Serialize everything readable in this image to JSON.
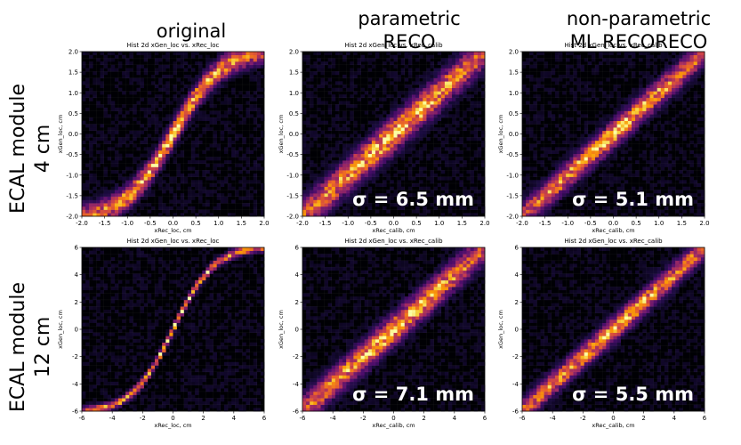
{
  "columns": [
    {
      "line1": "original",
      "line2": ""
    },
    {
      "line1": "parametric",
      "line2": "RECO"
    },
    {
      "line1": "non-parametric",
      "line2": "ML RECORECO"
    }
  ],
  "rows": [
    {
      "line1": "ECAL module",
      "line2": "4 cm"
    },
    {
      "line1": "ECAL module",
      "line2": "12 cm"
    }
  ],
  "colors": {
    "background": "#000004",
    "colormap": [
      "#000004",
      "#1b0c41",
      "#4a0c6b",
      "#781c6d",
      "#a52c60",
      "#cf4446",
      "#ed6925",
      "#fb9b06",
      "#f7d13d",
      "#fcffa4"
    ]
  },
  "chart_data": [
    {
      "type": "heatmap",
      "title": "Hist 2d xGen_loc vs. xRec_loc",
      "xlabel": "xRec_loc, cm",
      "ylabel": "xGen_loc, cm",
      "xlim": [
        -2.0,
        2.0
      ],
      "ylim": [
        -2.0,
        2.0
      ],
      "xticks": [
        "-2.0",
        "-1.5",
        "-1.0",
        "-0.5",
        "0.0",
        "0.5",
        "1.0",
        "1.5",
        "2.0"
      ],
      "yticks": [
        "-2.0",
        "-1.5",
        "-1.0",
        "-0.5",
        "0.0",
        "0.5",
        "1.0",
        "1.5",
        "2.0"
      ],
      "shape": "tanh",
      "shape_scale": 1.1,
      "spread": 0.18,
      "annotation": ""
    },
    {
      "type": "heatmap",
      "title": "Hist 2d xGen_loc vs. xRec_calib",
      "xlabel": "xRec_calib, cm",
      "ylabel": "xGen_loc, cm",
      "xlim": [
        -2.0,
        2.0
      ],
      "ylim": [
        -2.0,
        2.0
      ],
      "xticks": [
        "-2.0",
        "-1.5",
        "-1.0",
        "-0.5",
        "0.0",
        "0.5",
        "1.0",
        "1.5",
        "2.0"
      ],
      "yticks": [
        "-2.0",
        "-1.5",
        "-1.0",
        "-0.5",
        "0.0",
        "0.5",
        "1.0",
        "1.5",
        "2.0"
      ],
      "shape": "linear",
      "shape_scale": 1.0,
      "spread": 0.26,
      "annotation": "σ = 6.5 mm"
    },
    {
      "type": "heatmap",
      "title": "Hist 2d xGen_loc vs. xRec_calib",
      "xlabel": "xRec_calib, cm",
      "ylabel": "xGen_loc, cm",
      "xlim": [
        -2.0,
        2.0
      ],
      "ylim": [
        -2.0,
        2.0
      ],
      "xticks": [
        "-2.0",
        "-1.5",
        "-1.0",
        "-0.5",
        "0.0",
        "0.5",
        "1.0",
        "1.5",
        "2.0"
      ],
      "yticks": [
        "-2.0",
        "-1.5",
        "-1.0",
        "-0.5",
        "0.0",
        "0.5",
        "1.0",
        "1.5",
        "2.0"
      ],
      "shape": "linear",
      "shape_scale": 1.0,
      "spread": 0.2,
      "annotation": "σ = 5.1 mm"
    },
    {
      "type": "heatmap",
      "title": "Hist 2d xGen_loc vs. xRec_loc",
      "xlabel": "xRec_loc, cm",
      "ylabel": "xGen_loc, cm",
      "xlim": [
        -6,
        6
      ],
      "ylim": [
        -6,
        6
      ],
      "xticks": [
        "-6",
        "-4",
        "-2",
        "0",
        "2",
        "4",
        "6"
      ],
      "yticks": [
        "-6",
        "-4",
        "-2",
        "0",
        "2",
        "4",
        "6"
      ],
      "shape": "sigmoid",
      "shape_scale": 0.45,
      "spread": 0.2,
      "annotation": ""
    },
    {
      "type": "heatmap",
      "title": "Hist 2d xGen_loc vs. xRec_calib",
      "xlabel": "xRec_calib, cm",
      "ylabel": "xGen_loc, cm",
      "xlim": [
        -6,
        6
      ],
      "ylim": [
        -6,
        6
      ],
      "xticks": [
        "-6",
        "-4",
        "-2",
        "0",
        "2",
        "4",
        "6"
      ],
      "yticks": [
        "-6",
        "-4",
        "-2",
        "0",
        "2",
        "4",
        "6"
      ],
      "shape": "linear",
      "shape_scale": 1.0,
      "spread": 0.7,
      "annotation": "σ = 7.1 mm"
    },
    {
      "type": "heatmap",
      "title": "Hist 2d xGen_loc vs. xRec_calib",
      "xlabel": "xRec_calib, cm",
      "ylabel": "xGen_loc, cm",
      "xlim": [
        -6,
        6
      ],
      "ylim": [
        -6,
        6
      ],
      "xticks": [
        "-6",
        "-4",
        "-2",
        "0",
        "2",
        "4",
        "6"
      ],
      "yticks": [
        "-6",
        "-4",
        "-2",
        "0",
        "2",
        "4",
        "6"
      ],
      "shape": "linear",
      "shape_scale": 1.0,
      "spread": 0.55,
      "annotation": "σ = 5.5 mm"
    }
  ]
}
